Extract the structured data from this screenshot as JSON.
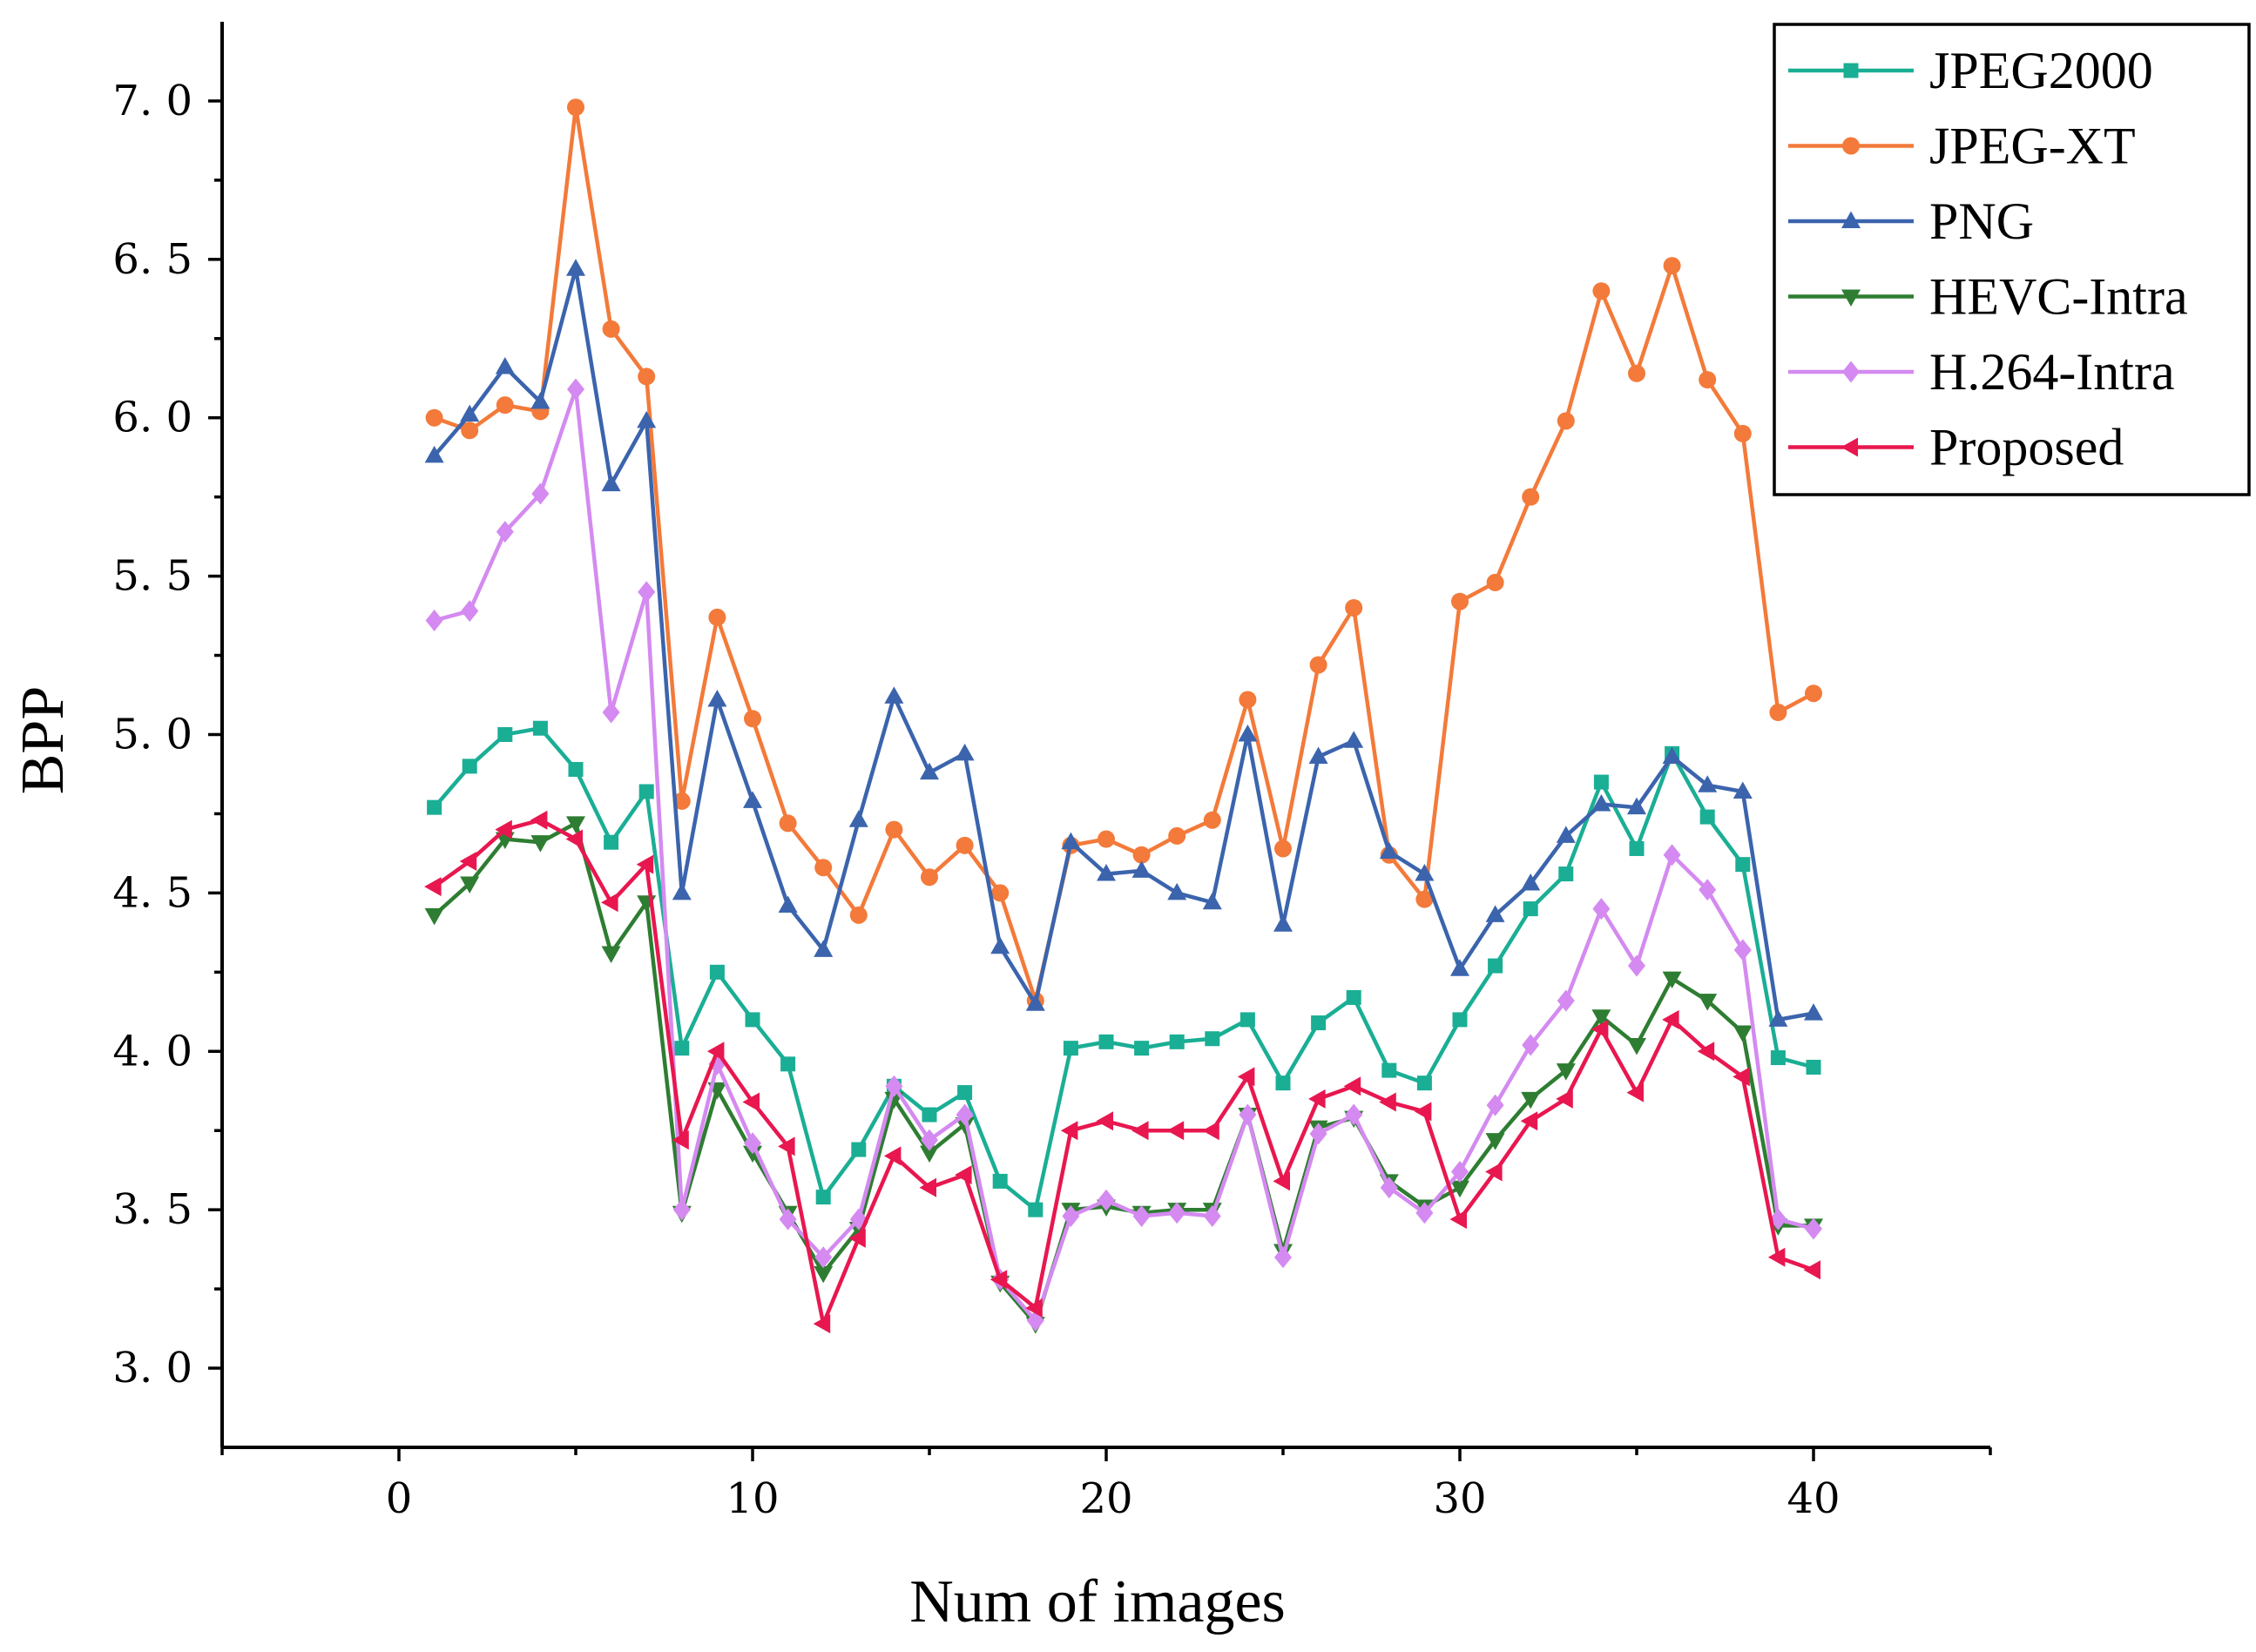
{
  "chart_data": {
    "type": "line",
    "title": "",
    "xlabel": "Num of images",
    "ylabel": "BPP",
    "xlim": [
      -5,
      45
    ],
    "ylim": [
      2.75,
      7.25
    ],
    "xticks": [
      0,
      10,
      20,
      30,
      40
    ],
    "yticks": [
      3.0,
      3.5,
      4.0,
      4.5,
      5.0,
      5.5,
      6.0,
      6.5,
      7.0
    ],
    "ytick_labels": [
      "3. 0",
      "3. 5",
      "4. 0",
      "4. 5",
      "5. 0",
      "5. 5",
      "6. 0",
      "6. 5",
      "7. 0"
    ],
    "grid": false,
    "legend_position": "top-right",
    "x": [
      1,
      2,
      3,
      4,
      5,
      6,
      7,
      8,
      9,
      10,
      11,
      12,
      13,
      14,
      15,
      16,
      17,
      18,
      19,
      20,
      21,
      22,
      23,
      24,
      25,
      26,
      27,
      28,
      29,
      30,
      31,
      32,
      33,
      34,
      35,
      36,
      37,
      38,
      39,
      40
    ],
    "series": [
      {
        "name": "JPEG2000",
        "color": "#1aae95",
        "marker": "square",
        "values": [
          4.77,
          4.9,
          5.0,
          5.02,
          4.89,
          4.66,
          4.82,
          4.01,
          4.25,
          4.1,
          3.96,
          3.54,
          3.69,
          3.89,
          3.8,
          3.87,
          3.59,
          3.5,
          4.01,
          4.03,
          4.01,
          4.03,
          4.04,
          4.1,
          3.9,
          4.09,
          4.17,
          3.94,
          3.9,
          4.1,
          4.27,
          4.45,
          4.56,
          4.85,
          4.64,
          4.94,
          4.74,
          4.59,
          3.98,
          3.95
        ]
      },
      {
        "name": "JPEG-XT",
        "color": "#f37a3a",
        "marker": "circle",
        "values": [
          6.0,
          5.96,
          6.04,
          6.02,
          6.98,
          6.28,
          6.13,
          4.79,
          5.37,
          5.05,
          4.72,
          4.58,
          4.43,
          4.7,
          4.55,
          4.65,
          4.5,
          4.16,
          4.65,
          4.67,
          4.62,
          4.68,
          4.73,
          5.11,
          4.64,
          5.22,
          5.4,
          4.62,
          4.48,
          5.42,
          5.48,
          5.75,
          5.99,
          6.4,
          6.14,
          6.48,
          6.12,
          5.95,
          5.07,
          5.13
        ]
      },
      {
        "name": "PNG",
        "color": "#3b64ad",
        "marker": "triangle-up",
        "values": [
          5.88,
          6.01,
          6.16,
          6.05,
          6.47,
          5.79,
          5.99,
          4.5,
          5.11,
          4.79,
          4.46,
          4.32,
          4.73,
          5.12,
          4.88,
          4.94,
          4.33,
          4.15,
          4.66,
          4.56,
          4.57,
          4.5,
          4.47,
          5.0,
          4.4,
          4.93,
          4.98,
          4.63,
          4.56,
          4.26,
          4.43,
          4.53,
          4.68,
          4.78,
          4.77,
          4.93,
          4.84,
          4.82,
          4.1,
          4.12
        ]
      },
      {
        "name": "HEVC-Intra",
        "color": "#2e7d32",
        "marker": "triangle-down",
        "values": [
          4.43,
          4.53,
          4.67,
          4.66,
          4.72,
          4.31,
          4.47,
          3.49,
          3.88,
          3.68,
          3.49,
          3.3,
          3.44,
          3.85,
          3.68,
          3.77,
          3.27,
          3.14,
          3.5,
          3.51,
          3.49,
          3.5,
          3.5,
          3.8,
          3.37,
          3.76,
          3.79,
          3.59,
          3.51,
          3.57,
          3.72,
          3.85,
          3.94,
          4.11,
          4.02,
          4.23,
          4.16,
          4.06,
          3.45,
          3.45
        ]
      },
      {
        "name": "H.264-Intra",
        "color": "#d48af0",
        "marker": "diamond",
        "values": [
          5.36,
          5.39,
          5.64,
          5.76,
          6.09,
          5.07,
          5.45,
          3.5,
          3.96,
          3.71,
          3.47,
          3.35,
          3.47,
          3.89,
          3.72,
          3.8,
          3.28,
          3.15,
          3.48,
          3.53,
          3.48,
          3.49,
          3.48,
          3.8,
          3.35,
          3.74,
          3.8,
          3.57,
          3.49,
          3.62,
          3.83,
          4.02,
          4.16,
          4.45,
          4.27,
          4.62,
          4.51,
          4.32,
          3.47,
          3.44
        ]
      },
      {
        "name": "Proposed",
        "color": "#e8174f",
        "marker": "triangle-left",
        "values": [
          4.52,
          4.6,
          4.7,
          4.73,
          4.67,
          4.47,
          4.59,
          3.72,
          4.0,
          3.84,
          3.7,
          3.14,
          3.41,
          3.67,
          3.57,
          3.61,
          3.28,
          3.19,
          3.75,
          3.78,
          3.75,
          3.75,
          3.75,
          3.92,
          3.59,
          3.85,
          3.89,
          3.84,
          3.81,
          3.47,
          3.62,
          3.78,
          3.85,
          4.07,
          3.87,
          4.1,
          4.0,
          3.92,
          3.35,
          3.31
        ]
      }
    ]
  }
}
